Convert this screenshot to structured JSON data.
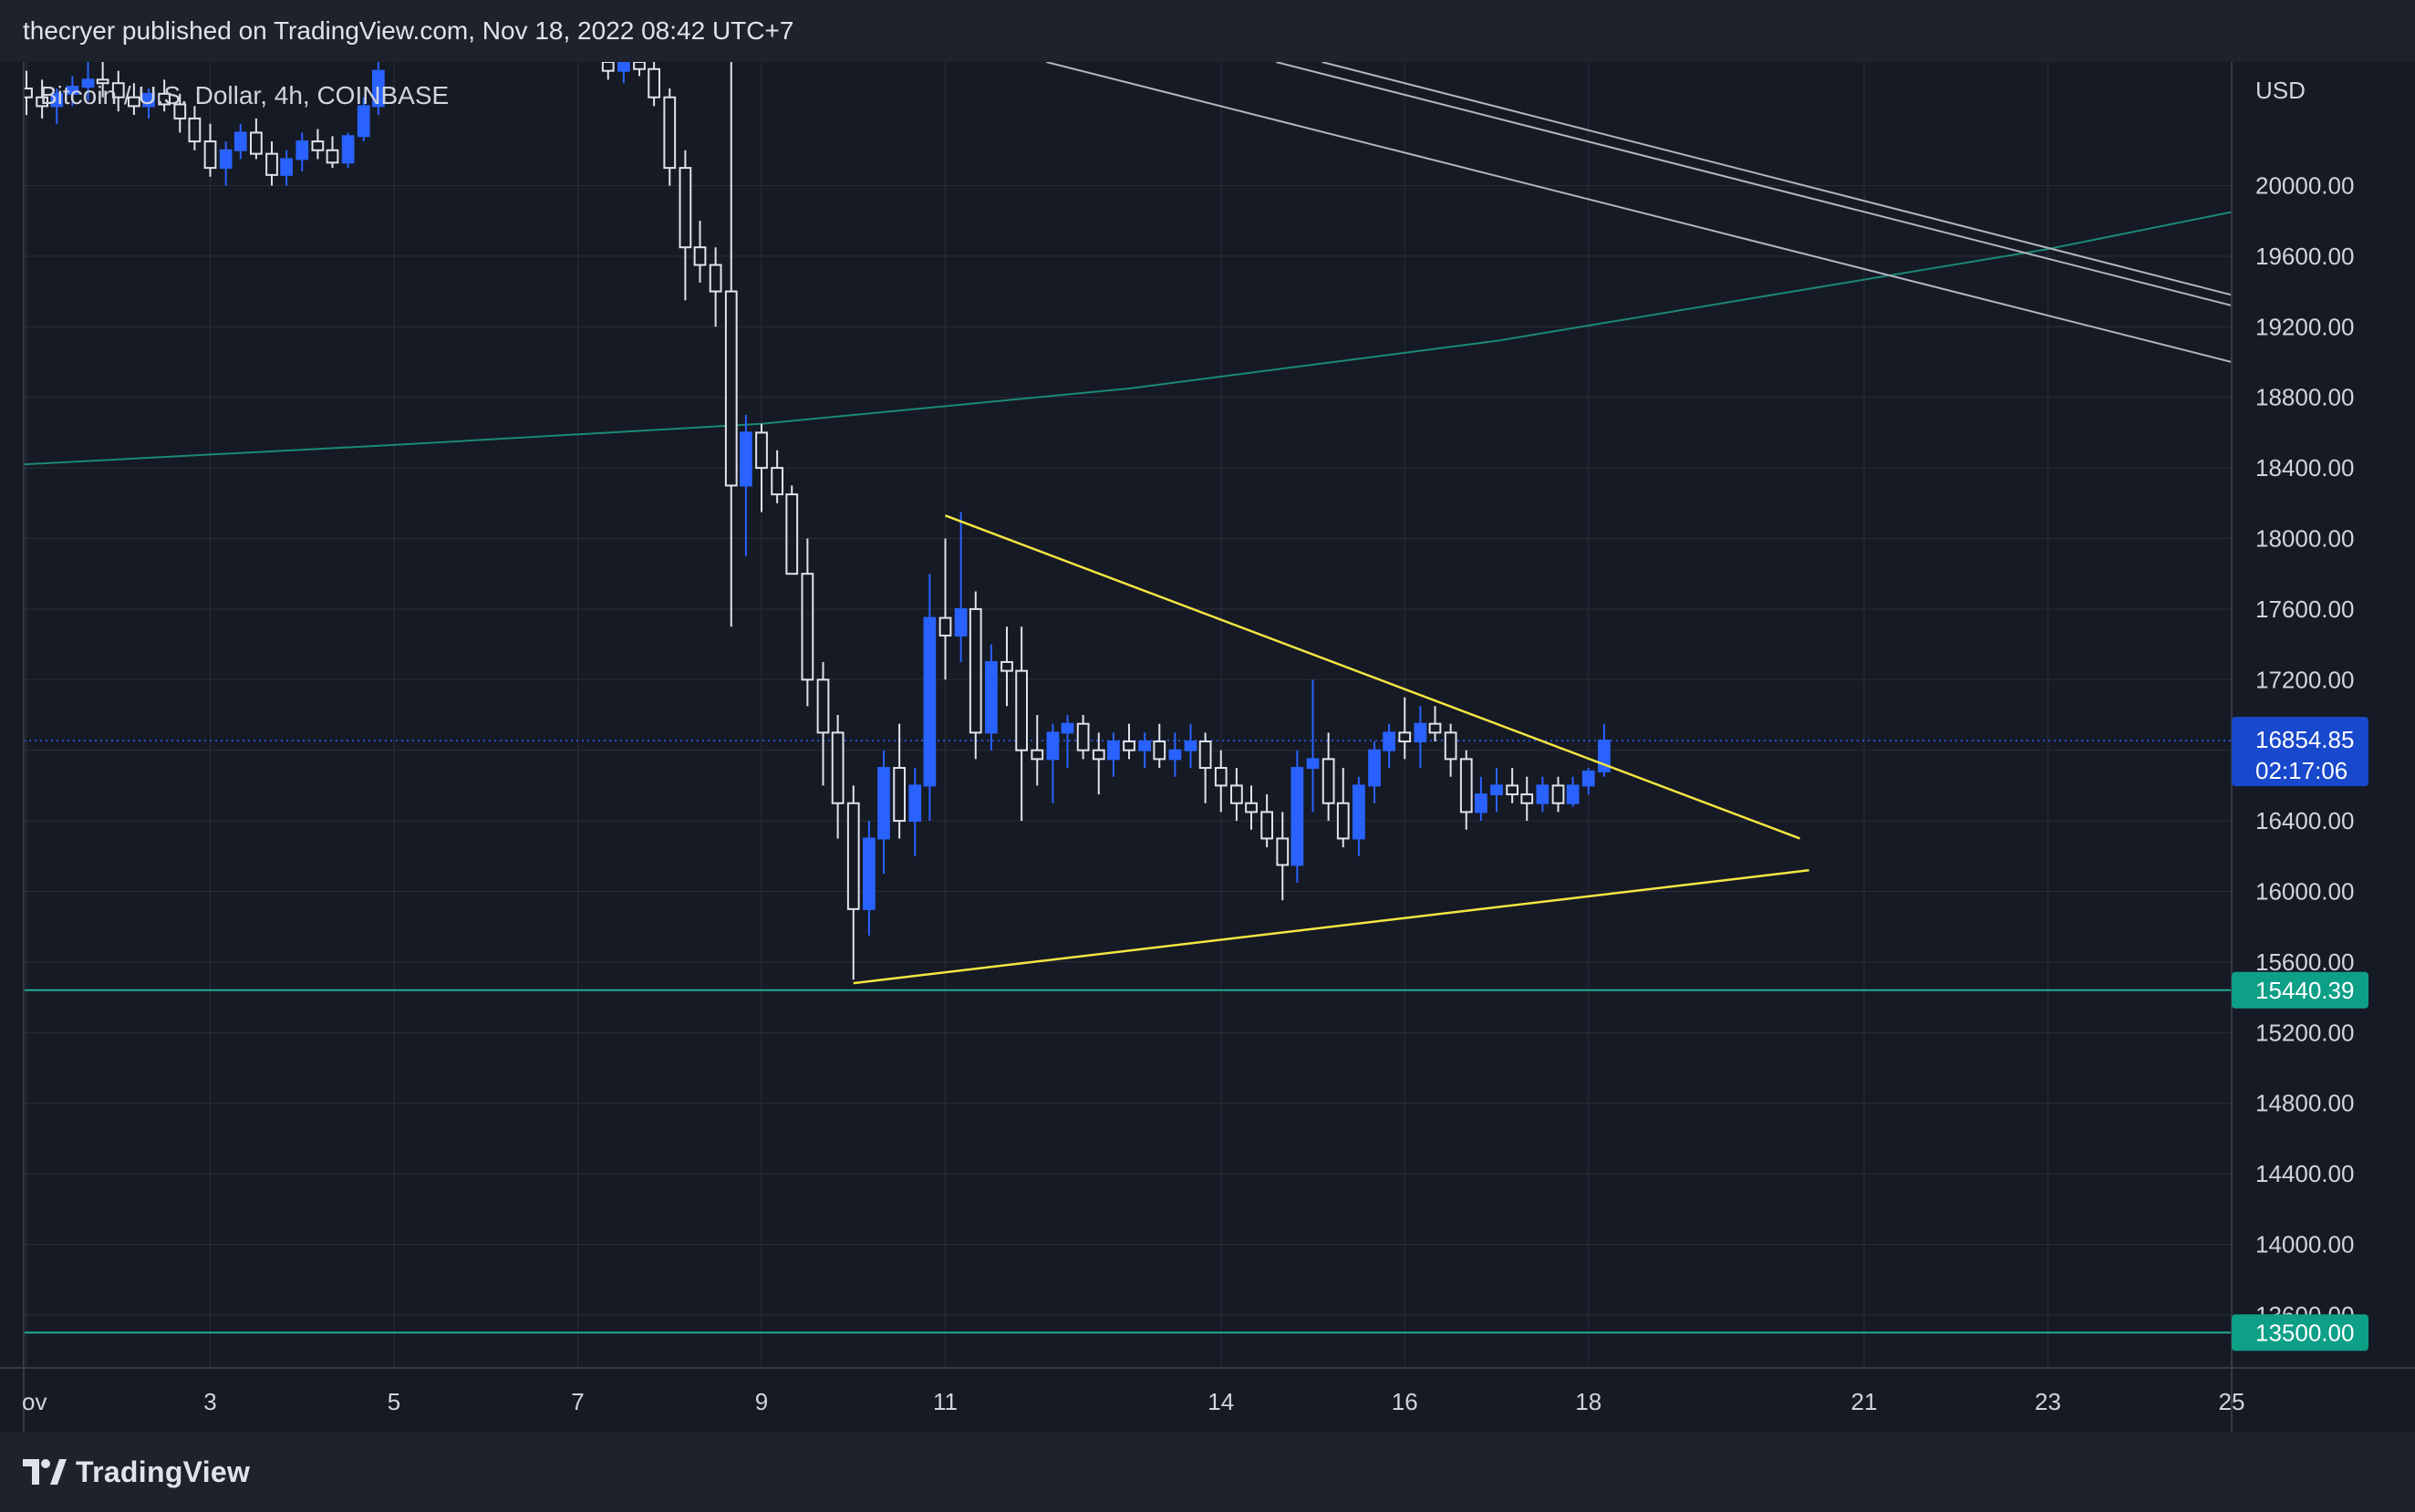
{
  "header": {
    "title": "thecryer published on TradingView.com, Nov 18, 2022 08:42 UTC+7"
  },
  "footer": {
    "brand": "TradingView",
    "logo_icon": "tradingview-logo-icon"
  },
  "colors": {
    "background": "#161a25",
    "panel": "#1e222d",
    "grid": "#2a2e39",
    "bull": "#2962ff",
    "bear": "#e0e3eb",
    "trendline": "#f5e642",
    "resistance": "#b2b5be",
    "ma_curve": "#1b8a75",
    "support_line": "#22ab94",
    "last_price_badge": "#1848cc",
    "support_badge": "#0e9f87"
  },
  "chart_data": {
    "type": "candlestick",
    "legend": "Bitcoin / U.S. Dollar, 4h, COINBASE",
    "currency": "USD",
    "x_ticks": [
      "ov",
      "3",
      "5",
      "7",
      "9",
      "11",
      "14",
      "16",
      "18",
      "21",
      "23",
      "25"
    ],
    "x_tick_days": [
      1,
      3,
      5,
      7,
      9,
      11,
      14,
      16,
      18,
      21,
      23,
      25
    ],
    "x_domain_days": [
      0.97,
      25.0
    ],
    "y_ticks": [
      "15600.00",
      "16000.00",
      "16400.00",
      "16800.00",
      "17200.00",
      "17600.00",
      "18000.00",
      "18400.00",
      "18800.00",
      "19200.00",
      "19600.00",
      "20000.00",
      "13600.00",
      "14000.00",
      "14400.00",
      "14800.00",
      "15200.00"
    ],
    "y_tick_values": [
      15600,
      16000,
      16400,
      16800,
      17200,
      17600,
      18000,
      18400,
      18800,
      19200,
      19600,
      20000,
      13600,
      14000,
      14400,
      14800,
      15200
    ],
    "ylim": [
      13300,
      20700
    ],
    "last_price": {
      "value": 16854.85,
      "label": "16854.85",
      "countdown": "02:17:06"
    },
    "support_levels": [
      {
        "value": 15440.39,
        "label": "15440.39"
      },
      {
        "value": 13500.0,
        "label": "13500.00"
      }
    ],
    "candles": [
      [
        1.0,
        20550,
        20650,
        20400,
        20500
      ],
      [
        1.17,
        20500,
        20600,
        20380,
        20450
      ],
      [
        1.33,
        20450,
        20550,
        20350,
        20520
      ],
      [
        1.5,
        20520,
        20620,
        20450,
        20560
      ],
      [
        1.67,
        20560,
        20700,
        20480,
        20600
      ],
      [
        1.83,
        20600,
        20700,
        20500,
        20580
      ],
      [
        2.0,
        20580,
        20650,
        20420,
        20500
      ],
      [
        2.17,
        20500,
        20580,
        20400,
        20450
      ],
      [
        2.33,
        20450,
        20550,
        20380,
        20520
      ],
      [
        2.5,
        20520,
        20600,
        20420,
        20460
      ],
      [
        2.67,
        20460,
        20520,
        20300,
        20380
      ],
      [
        2.83,
        20380,
        20450,
        20200,
        20250
      ],
      [
        3.0,
        20250,
        20350,
        20050,
        20100
      ],
      [
        3.17,
        20100,
        20250,
        20000,
        20200
      ],
      [
        3.33,
        20200,
        20350,
        20150,
        20300
      ],
      [
        3.5,
        20300,
        20380,
        20150,
        20180
      ],
      [
        3.67,
        20180,
        20250,
        20000,
        20060
      ],
      [
        3.83,
        20060,
        20200,
        20000,
        20150
      ],
      [
        4.0,
        20150,
        20300,
        20080,
        20250
      ],
      [
        4.17,
        20250,
        20320,
        20150,
        20200
      ],
      [
        4.33,
        20200,
        20280,
        20100,
        20130
      ],
      [
        4.5,
        20130,
        20300,
        20100,
        20280
      ],
      [
        4.67,
        20280,
        20500,
        20250,
        20450
      ],
      [
        4.83,
        20450,
        20700,
        20400,
        20650
      ],
      [
        7.33,
        20700,
        20780,
        20600,
        20650
      ],
      [
        7.5,
        20650,
        20750,
        20580,
        20700
      ],
      [
        7.67,
        20700,
        20800,
        20620,
        20660
      ],
      [
        7.83,
        20660,
        20700,
        20450,
        20500
      ],
      [
        8.0,
        20500,
        20550,
        20000,
        20100
      ],
      [
        8.17,
        20100,
        20200,
        19350,
        19650
      ],
      [
        8.33,
        19650,
        19800,
        19450,
        19550
      ],
      [
        8.5,
        19550,
        19650,
        19200,
        19400
      ],
      [
        8.67,
        19400,
        20700,
        17500,
        18300
      ],
      [
        8.83,
        18300,
        18700,
        17900,
        18600
      ],
      [
        9.0,
        18600,
        18650,
        18150,
        18400
      ],
      [
        9.17,
        18400,
        18500,
        18200,
        18250
      ],
      [
        9.33,
        18250,
        18300,
        17800,
        17800
      ],
      [
        9.5,
        17800,
        18000,
        17050,
        17200
      ],
      [
        9.67,
        17200,
        17300,
        16600,
        16900
      ],
      [
        9.83,
        16900,
        17000,
        16300,
        16500
      ],
      [
        10.0,
        16500,
        16600,
        15500,
        15900
      ],
      [
        10.17,
        15900,
        16400,
        15750,
        16300
      ],
      [
        10.33,
        16300,
        16800,
        16100,
        16700
      ],
      [
        10.5,
        16700,
        16950,
        16300,
        16400
      ],
      [
        10.67,
        16400,
        16700,
        16200,
        16600
      ],
      [
        10.83,
        16600,
        17800,
        16400,
        17550
      ],
      [
        11.0,
        17550,
        18000,
        17200,
        17450
      ],
      [
        11.17,
        17450,
        18150,
        17300,
        17600
      ],
      [
        11.33,
        17600,
        17700,
        16750,
        16900
      ],
      [
        11.5,
        16900,
        17400,
        16800,
        17300
      ],
      [
        11.67,
        17300,
        17500,
        17050,
        17250
      ],
      [
        11.83,
        17250,
        17500,
        16400,
        16800
      ],
      [
        12.0,
        16800,
        17000,
        16600,
        16750
      ],
      [
        12.17,
        16750,
        16950,
        16500,
        16900
      ],
      [
        12.33,
        16900,
        17000,
        16700,
        16950
      ],
      [
        12.5,
        16950,
        17000,
        16750,
        16800
      ],
      [
        12.67,
        16800,
        16900,
        16550,
        16750
      ],
      [
        12.83,
        16750,
        16900,
        16650,
        16850
      ],
      [
        13.0,
        16850,
        16950,
        16750,
        16800
      ],
      [
        13.17,
        16800,
        16900,
        16700,
        16850
      ],
      [
        13.33,
        16850,
        16950,
        16700,
        16750
      ],
      [
        13.5,
        16750,
        16900,
        16650,
        16800
      ],
      [
        13.67,
        16800,
        16950,
        16700,
        16850
      ],
      [
        13.83,
        16850,
        16900,
        16500,
        16700
      ],
      [
        14.0,
        16700,
        16800,
        16450,
        16600
      ],
      [
        14.17,
        16600,
        16700,
        16400,
        16500
      ],
      [
        14.33,
        16500,
        16600,
        16350,
        16450
      ],
      [
        14.5,
        16450,
        16550,
        16250,
        16300
      ],
      [
        14.67,
        16300,
        16450,
        15950,
        16150
      ],
      [
        14.83,
        16150,
        16800,
        16050,
        16700
      ],
      [
        15.0,
        16700,
        17200,
        16450,
        16750
      ],
      [
        15.17,
        16750,
        16900,
        16400,
        16500
      ],
      [
        15.33,
        16500,
        16700,
        16250,
        16300
      ],
      [
        15.5,
        16300,
        16650,
        16200,
        16600
      ],
      [
        15.67,
        16600,
        16850,
        16500,
        16800
      ],
      [
        15.83,
        16800,
        16950,
        16700,
        16900
      ],
      [
        16.0,
        16900,
        17100,
        16750,
        16850
      ],
      [
        16.17,
        16850,
        17050,
        16700,
        16950
      ],
      [
        16.33,
        16950,
        17050,
        16850,
        16900
      ],
      [
        16.5,
        16900,
        16950,
        16650,
        16750
      ],
      [
        16.67,
        16750,
        16800,
        16350,
        16450
      ],
      [
        16.83,
        16450,
        16650,
        16400,
        16550
      ],
      [
        17.0,
        16550,
        16700,
        16450,
        16600
      ],
      [
        17.17,
        16600,
        16700,
        16500,
        16550
      ],
      [
        17.33,
        16550,
        16650,
        16400,
        16500
      ],
      [
        17.5,
        16500,
        16650,
        16450,
        16600
      ],
      [
        17.67,
        16600,
        16650,
        16450,
        16500
      ],
      [
        17.83,
        16500,
        16650,
        16480,
        16600
      ],
      [
        18.0,
        16600,
        16700,
        16550,
        16680
      ],
      [
        18.17,
        16680,
        16950,
        16650,
        16855
      ]
    ],
    "trendlines": [
      {
        "name": "descending-yellow",
        "from": [
          11.0,
          18130
        ],
        "to": [
          20.3,
          16300
        ]
      },
      {
        "name": "ascending-yellow",
        "from": [
          10.0,
          15480
        ],
        "to": [
          20.4,
          16120
        ]
      }
    ],
    "resistance_lines": [
      {
        "from": [
          12.1,
          20700
        ],
        "to": [
          25.0,
          19000
        ]
      },
      {
        "from": [
          14.6,
          20700
        ],
        "to": [
          25.0,
          19320
        ]
      },
      {
        "from": [
          15.1,
          20700
        ],
        "to": [
          25.0,
          19380
        ]
      }
    ],
    "ma_curve": [
      [
        0.97,
        18420
      ],
      [
        5.0,
        18530
      ],
      [
        9.0,
        18650
      ],
      [
        13.0,
        18850
      ],
      [
        17.0,
        19120
      ],
      [
        20.0,
        19380
      ],
      [
        23.0,
        19640
      ],
      [
        25.0,
        19850
      ]
    ]
  }
}
